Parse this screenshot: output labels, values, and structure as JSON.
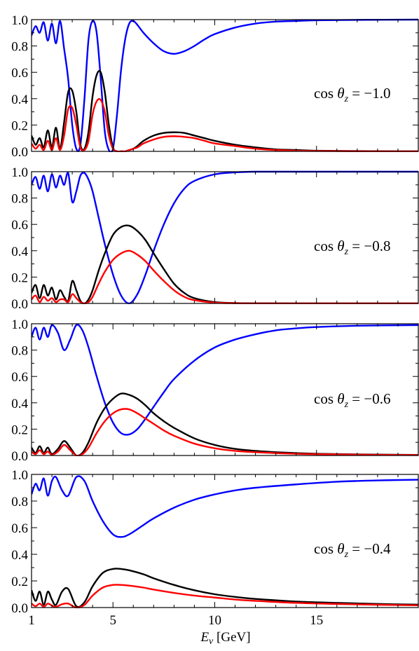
{
  "chart_data": {
    "type": "line",
    "xlabel_var": "E",
    "xlabel_sub": "ν",
    "xlabel_unit": " [GeV]",
    "x_ticks": [
      "1",
      "5",
      "10",
      "15"
    ],
    "y_ticks": [
      "0.0",
      "0.2",
      "0.4",
      "0.6",
      "0.8",
      "1.0"
    ],
    "xlim": [
      1,
      20
    ],
    "ylim": [
      0,
      1
    ],
    "series_colors": [
      "#0000ff",
      "#000000",
      "#ff0000"
    ],
    "panels": [
      {
        "annotation_prefix": "cos θ",
        "annotation_sub": "z",
        "annotation_value": " = −1.0",
        "series": [
          {
            "color": "#0000ff",
            "x": [
              1,
              1.2,
              1.4,
              1.6,
              1.8,
              2,
              2.2,
              2.4,
              2.6,
              2.8,
              3.0,
              3.2,
              3.4,
              3.6,
              3.8,
              4.0,
              4.2,
              4.4,
              4.6,
              4.8,
              5.0,
              5.2,
              5.4,
              5.6,
              5.8,
              6.0,
              6.2,
              6.5,
              7,
              7.5,
              8,
              8.5,
              9,
              9.5,
              10,
              11,
              12,
              13,
              14,
              15,
              17,
              20
            ],
            "values": [
              0.88,
              0.95,
              0.9,
              0.98,
              0.84,
              0.97,
              0.82,
              0.99,
              0.78,
              0.55,
              0.2,
              0.02,
              0.05,
              0.4,
              0.85,
              0.99,
              0.9,
              0.55,
              0.15,
              0.01,
              0.02,
              0.28,
              0.62,
              0.85,
              0.97,
              0.99,
              0.96,
              0.9,
              0.82,
              0.76,
              0.74,
              0.76,
              0.8,
              0.85,
              0.89,
              0.94,
              0.97,
              0.985,
              0.99,
              0.995,
              0.998,
              1.0
            ]
          },
          {
            "color": "#000000",
            "x": [
              1,
              1.2,
              1.4,
              1.6,
              1.8,
              2,
              2.2,
              2.4,
              2.6,
              2.8,
              3.0,
              3.2,
              3.4,
              3.6,
              3.8,
              4.0,
              4.2,
              4.4,
              4.6,
              4.8,
              5.0,
              5.2,
              5.4,
              5.6,
              5.8,
              6.0,
              6.2,
              6.5,
              7,
              7.5,
              8,
              8.5,
              9,
              9.5,
              10,
              11,
              12,
              13,
              14,
              15,
              17,
              20
            ],
            "values": [
              0.12,
              0.05,
              0.1,
              0.03,
              0.16,
              0.03,
              0.18,
              0.02,
              0.22,
              0.45,
              0.46,
              0.3,
              0.05,
              0.02,
              0.15,
              0.42,
              0.58,
              0.6,
              0.45,
              0.2,
              0.03,
              0.0,
              0.0,
              0.0,
              0.01,
              0.02,
              0.04,
              0.08,
              0.12,
              0.14,
              0.145,
              0.14,
              0.12,
              0.1,
              0.08,
              0.05,
              0.03,
              0.015,
              0.01,
              0.005,
              0.002,
              0.0
            ]
          },
          {
            "color": "#ff0000",
            "x": [
              1,
              1.2,
              1.4,
              1.6,
              1.8,
              2,
              2.2,
              2.4,
              2.6,
              2.8,
              3.0,
              3.2,
              3.4,
              3.6,
              3.8,
              4.0,
              4.2,
              4.4,
              4.6,
              4.8,
              5.0,
              5.2,
              5.4,
              5.6,
              5.8,
              6.0,
              6.2,
              6.5,
              7,
              7.5,
              8,
              8.5,
              9,
              9.5,
              10,
              11,
              12,
              13,
              14,
              15,
              17,
              20
            ],
            "values": [
              0.06,
              0.02,
              0.05,
              0.01,
              0.08,
              0.01,
              0.1,
              0.01,
              0.12,
              0.32,
              0.33,
              0.2,
              0.03,
              0.01,
              0.08,
              0.28,
              0.38,
              0.39,
              0.3,
              0.12,
              0.02,
              0.0,
              0.0,
              0.0,
              0.01,
              0.02,
              0.03,
              0.06,
              0.09,
              0.11,
              0.115,
              0.11,
              0.1,
              0.08,
              0.06,
              0.04,
              0.02,
              0.01,
              0.005,
              0.003,
              0.001,
              0.0
            ]
          }
        ]
      },
      {
        "annotation_prefix": "cos θ",
        "annotation_sub": "z",
        "annotation_value": " = −0.8",
        "series": [
          {
            "color": "#0000ff",
            "x": [
              1,
              1.2,
              1.4,
              1.6,
              1.8,
              2,
              2.2,
              2.4,
              2.6,
              2.8,
              3.0,
              3.2,
              3.4,
              3.6,
              3.8,
              4.0,
              4.3,
              4.6,
              5.0,
              5.4,
              5.8,
              6.2,
              6.6,
              7,
              7.5,
              8,
              8.5,
              9,
              10,
              11,
              12,
              14,
              17,
              20
            ],
            "values": [
              0.9,
              0.96,
              0.87,
              0.97,
              0.85,
              0.98,
              0.88,
              0.97,
              0.9,
              0.99,
              0.77,
              0.85,
              0.97,
              0.99,
              0.94,
              0.85,
              0.65,
              0.45,
              0.22,
              0.06,
              0.0,
              0.07,
              0.22,
              0.4,
              0.6,
              0.76,
              0.87,
              0.93,
              0.98,
              0.995,
              1.0,
              1.0,
              1.0,
              1.0
            ]
          },
          {
            "color": "#000000",
            "x": [
              1,
              1.2,
              1.4,
              1.6,
              1.8,
              2,
              2.2,
              2.4,
              2.6,
              2.8,
              3.0,
              3.2,
              3.4,
              3.6,
              3.8,
              4.0,
              4.3,
              4.6,
              5.0,
              5.4,
              5.8,
              6.2,
              6.6,
              7,
              7.5,
              8,
              8.5,
              9,
              10,
              11,
              12,
              14,
              17,
              20
            ],
            "values": [
              0.08,
              0.14,
              0.04,
              0.14,
              0.06,
              0.12,
              0.03,
              0.1,
              0.05,
              0.02,
              0.17,
              0.1,
              0.02,
              0.0,
              0.03,
              0.1,
              0.25,
              0.38,
              0.52,
              0.58,
              0.59,
              0.55,
              0.48,
              0.38,
              0.26,
              0.15,
              0.08,
              0.04,
              0.01,
              0.003,
              0.001,
              0.0,
              0.0,
              0.0
            ]
          },
          {
            "color": "#ff0000",
            "x": [
              1,
              1.2,
              1.4,
              1.6,
              1.8,
              2,
              2.2,
              2.4,
              2.6,
              2.8,
              3.0,
              3.2,
              3.4,
              3.6,
              3.8,
              4.0,
              4.3,
              4.6,
              5.0,
              5.4,
              5.8,
              6.2,
              6.6,
              7,
              7.5,
              8,
              8.5,
              9,
              10,
              11,
              12,
              14,
              17,
              20
            ],
            "values": [
              0.03,
              0.06,
              0.01,
              0.05,
              0.02,
              0.04,
              0.01,
              0.03,
              0.03,
              0.01,
              0.07,
              0.04,
              0.01,
              0.0,
              0.01,
              0.05,
              0.15,
              0.24,
              0.33,
              0.38,
              0.4,
              0.37,
              0.32,
              0.25,
              0.17,
              0.1,
              0.05,
              0.025,
              0.006,
              0.002,
              0.0,
              0.0,
              0.0,
              0.0
            ]
          }
        ]
      },
      {
        "annotation_prefix": "cos θ",
        "annotation_sub": "z",
        "annotation_value": " = −0.6",
        "series": [
          {
            "color": "#0000ff",
            "x": [
              1,
              1.2,
              1.4,
              1.6,
              1.8,
              2,
              2.3,
              2.6,
              2.9,
              3.2,
              3.5,
              3.8,
              4.2,
              4.6,
              5.0,
              5.4,
              5.8,
              6.2,
              6.6,
              7,
              7.5,
              8,
              9,
              10,
              11,
              12,
              13,
              14,
              15,
              17,
              20
            ],
            "values": [
              0.9,
              0.97,
              0.88,
              0.97,
              0.9,
              0.99,
              0.93,
              0.8,
              0.88,
              0.99,
              0.95,
              0.82,
              0.6,
              0.4,
              0.25,
              0.17,
              0.16,
              0.2,
              0.28,
              0.37,
              0.48,
              0.58,
              0.72,
              0.82,
              0.88,
              0.92,
              0.95,
              0.965,
              0.975,
              0.985,
              0.99
            ]
          },
          {
            "color": "#000000",
            "x": [
              1,
              1.2,
              1.4,
              1.6,
              1.8,
              2,
              2.3,
              2.6,
              2.9,
              3.2,
              3.5,
              3.8,
              4.2,
              4.6,
              5.0,
              5.4,
              5.8,
              6.2,
              6.6,
              7,
              7.5,
              8,
              9,
              10,
              11,
              12,
              13,
              14,
              15,
              17,
              20
            ],
            "values": [
              0.06,
              0.02,
              0.07,
              0.02,
              0.06,
              0.01,
              0.05,
              0.11,
              0.06,
              0.0,
              0.02,
              0.1,
              0.25,
              0.36,
              0.43,
              0.47,
              0.46,
              0.43,
              0.38,
              0.32,
              0.26,
              0.21,
              0.13,
              0.08,
              0.05,
              0.035,
              0.025,
              0.018,
              0.013,
              0.008,
              0.004
            ]
          },
          {
            "color": "#ff0000",
            "x": [
              1,
              1.2,
              1.4,
              1.6,
              1.8,
              2,
              2.3,
              2.6,
              2.9,
              3.2,
              3.5,
              3.8,
              4.2,
              4.6,
              5.0,
              5.4,
              5.8,
              6.2,
              6.6,
              7,
              7.5,
              8,
              9,
              10,
              11,
              12,
              13,
              14,
              15,
              17,
              20
            ],
            "values": [
              0.03,
              0.01,
              0.04,
              0.01,
              0.03,
              0.005,
              0.03,
              0.08,
              0.04,
              0.0,
              0.01,
              0.06,
              0.17,
              0.26,
              0.32,
              0.35,
              0.35,
              0.32,
              0.28,
              0.24,
              0.19,
              0.15,
              0.09,
              0.055,
              0.035,
              0.025,
              0.018,
              0.013,
              0.01,
              0.006,
              0.003
            ]
          }
        ]
      },
      {
        "annotation_prefix": "cos θ",
        "annotation_sub": "z",
        "annotation_value": " = −0.4",
        "series": [
          {
            "color": "#0000ff",
            "x": [
              1,
              1.2,
              1.4,
              1.6,
              1.8,
              2,
              2.2,
              2.5,
              2.8,
              3.2,
              3.6,
              4.0,
              4.5,
              5.0,
              5.4,
              5.8,
              6.5,
              7,
              8,
              9,
              10,
              11,
              12,
              14,
              16,
              18,
              20
            ],
            "values": [
              0.85,
              0.93,
              0.88,
              0.97,
              0.84,
              0.95,
              0.98,
              0.88,
              0.84,
              0.98,
              0.95,
              0.8,
              0.65,
              0.55,
              0.53,
              0.55,
              0.62,
              0.67,
              0.75,
              0.81,
              0.85,
              0.88,
              0.9,
              0.925,
              0.945,
              0.955,
              0.96
            ]
          },
          {
            "color": "#000000",
            "x": [
              1,
              1.2,
              1.4,
              1.6,
              1.8,
              2,
              2.2,
              2.5,
              2.8,
              3.2,
              3.6,
              4.0,
              4.5,
              5.0,
              5.4,
              5.8,
              6.5,
              7,
              8,
              9,
              10,
              11,
              12,
              14,
              16,
              18,
              20
            ],
            "values": [
              0.13,
              0.05,
              0.12,
              0.02,
              0.12,
              0.06,
              0.02,
              0.12,
              0.14,
              0.01,
              0.04,
              0.16,
              0.26,
              0.29,
              0.29,
              0.28,
              0.25,
              0.22,
              0.17,
              0.13,
              0.1,
              0.08,
              0.065,
              0.045,
              0.035,
              0.027,
              0.022
            ]
          },
          {
            "color": "#ff0000",
            "x": [
              1,
              1.2,
              1.4,
              1.6,
              1.8,
              2,
              2.2,
              2.5,
              2.8,
              3.2,
              3.6,
              4.0,
              4.5,
              5.0,
              5.4,
              5.8,
              6.5,
              7,
              8,
              9,
              10,
              11,
              12,
              14,
              16,
              18,
              20
            ],
            "values": [
              0.03,
              0.01,
              0.03,
              0.005,
              0.03,
              0.015,
              0.005,
              0.025,
              0.03,
              0.0,
              0.02,
              0.09,
              0.15,
              0.17,
              0.17,
              0.165,
              0.15,
              0.135,
              0.11,
              0.09,
              0.075,
              0.06,
              0.05,
              0.035,
              0.027,
              0.021,
              0.017
            ]
          }
        ]
      }
    ]
  }
}
